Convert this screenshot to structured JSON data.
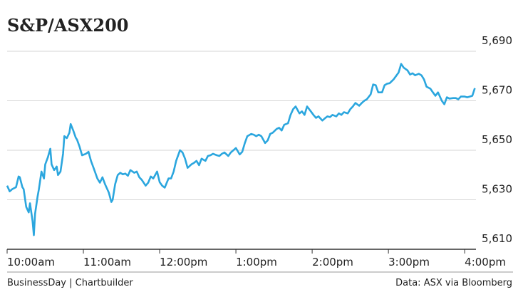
{
  "chart_data": {
    "type": "line",
    "title": "S&P/ASX200",
    "credit": "BusinessDay | Chartbuilder",
    "source": "Data: ASX via Bloomberg",
    "color": "#2ba6de",
    "grid": true,
    "xlim": [
      0,
      370
    ],
    "ylim": [
      5610,
      5690
    ],
    "xticks": [
      {
        "value": 0,
        "label": "10:00am"
      },
      {
        "value": 60,
        "label": "11:00am"
      },
      {
        "value": 120,
        "label": "12:00pm"
      },
      {
        "value": 180,
        "label": "1:00pm"
      },
      {
        "value": 240,
        "label": "2:00pm"
      },
      {
        "value": 300,
        "label": "3:00pm"
      },
      {
        "value": 360,
        "label": "4:00pm"
      }
    ],
    "yticks": [
      {
        "value": 5610,
        "label": "5,610"
      },
      {
        "value": 5630,
        "label": "5,630"
      },
      {
        "value": 5650,
        "label": "5,650"
      },
      {
        "value": 5670,
        "label": "5,670"
      },
      {
        "value": 5690,
        "label": "5,690"
      }
    ],
    "x": [
      0,
      2,
      4,
      7,
      9,
      10,
      12,
      13,
      15,
      17,
      18,
      20,
      21,
      22,
      24,
      25,
      27,
      29,
      30,
      32,
      34,
      35,
      37,
      39,
      40,
      42,
      44,
      45,
      47,
      49,
      50,
      52,
      54,
      55,
      57,
      59,
      62,
      64,
      66,
      68,
      71,
      73,
      75,
      77,
      80,
      82,
      83,
      85,
      87,
      89,
      91,
      93,
      95,
      97,
      100,
      102,
      104,
      106,
      109,
      111,
      113,
      115,
      118,
      120,
      122,
      124,
      127,
      129,
      131,
      133,
      136,
      138,
      140,
      142,
      145,
      147,
      149,
      151,
      153,
      156,
      158,
      160,
      162,
      165,
      167,
      169,
      171,
      174,
      176,
      178,
      180,
      183,
      185,
      187,
      189,
      192,
      194,
      196,
      198,
      200,
      203,
      205,
      207,
      209,
      212,
      214,
      216,
      218,
      221,
      223,
      225,
      227,
      230,
      232,
      234,
      236,
      239,
      241,
      243,
      245,
      248,
      250,
      252,
      254,
      256,
      259,
      261,
      263,
      265,
      268,
      270,
      272,
      274,
      277,
      279,
      281,
      283,
      286,
      288,
      290,
      292,
      295,
      297,
      299,
      301,
      304,
      306,
      308,
      310,
      312,
      315,
      317,
      319,
      321,
      324,
      326,
      328,
      330,
      333,
      335,
      337,
      339,
      342,
      344,
      346,
      348,
      351,
      353,
      355,
      357,
      360,
      362,
      364,
      366,
      368
    ],
    "values": [
      5635.7,
      5633.4,
      5634.3,
      5635.1,
      5639.4,
      5639.1,
      5635.1,
      5634.3,
      5627.1,
      5624.9,
      5628.6,
      5621.4,
      5615.7,
      5624.3,
      5631.4,
      5634.3,
      5641.4,
      5638.6,
      5644.3,
      5647.1,
      5650.6,
      5644.3,
      5642.0,
      5643.4,
      5640.0,
      5641.4,
      5648.6,
      5655.7,
      5654.9,
      5657.1,
      5660.6,
      5658.0,
      5655.1,
      5654.3,
      5651.4,
      5648.0,
      5648.6,
      5649.4,
      5645.7,
      5642.9,
      5638.6,
      5636.9,
      5639.1,
      5636.3,
      5632.9,
      5629.1,
      5630.0,
      5636.3,
      5640.0,
      5640.9,
      5640.3,
      5640.6,
      5639.7,
      5642.0,
      5640.9,
      5641.4,
      5639.1,
      5638.0,
      5635.7,
      5636.9,
      5639.4,
      5638.6,
      5641.4,
      5637.1,
      5635.7,
      5634.9,
      5638.6,
      5638.6,
      5641.4,
      5645.7,
      5650.0,
      5649.1,
      5646.6,
      5642.9,
      5644.3,
      5644.9,
      5645.7,
      5644.0,
      5646.6,
      5645.7,
      5647.7,
      5648.0,
      5648.6,
      5648.0,
      5647.7,
      5648.6,
      5649.1,
      5647.7,
      5649.1,
      5650.0,
      5650.9,
      5648.3,
      5649.4,
      5652.9,
      5655.7,
      5656.6,
      5656.3,
      5655.7,
      5656.3,
      5655.7,
      5652.9,
      5654.0,
      5656.6,
      5657.1,
      5658.6,
      5659.1,
      5658.0,
      5660.3,
      5660.9,
      5664.3,
      5666.6,
      5667.7,
      5664.9,
      5665.7,
      5664.3,
      5667.7,
      5665.7,
      5664.3,
      5663.1,
      5663.7,
      5662.0,
      5662.9,
      5663.7,
      5663.4,
      5664.3,
      5663.7,
      5664.9,
      5664.3,
      5665.4,
      5664.9,
      5666.6,
      5667.7,
      5669.1,
      5668.0,
      5669.1,
      5670.0,
      5670.6,
      5672.6,
      5676.6,
      5676.3,
      5673.4,
      5673.4,
      5676.3,
      5676.9,
      5677.1,
      5678.6,
      5680.0,
      5681.4,
      5684.9,
      5683.4,
      5682.3,
      5680.6,
      5681.1,
      5680.3,
      5680.9,
      5680.3,
      5678.6,
      5675.7,
      5674.9,
      5673.4,
      5672.0,
      5673.4,
      5670.0,
      5668.6,
      5671.4,
      5670.9,
      5671.1,
      5671.1,
      5670.6,
      5671.7,
      5671.7,
      5671.4,
      5671.7,
      5672.0,
      5675.1
    ]
  }
}
